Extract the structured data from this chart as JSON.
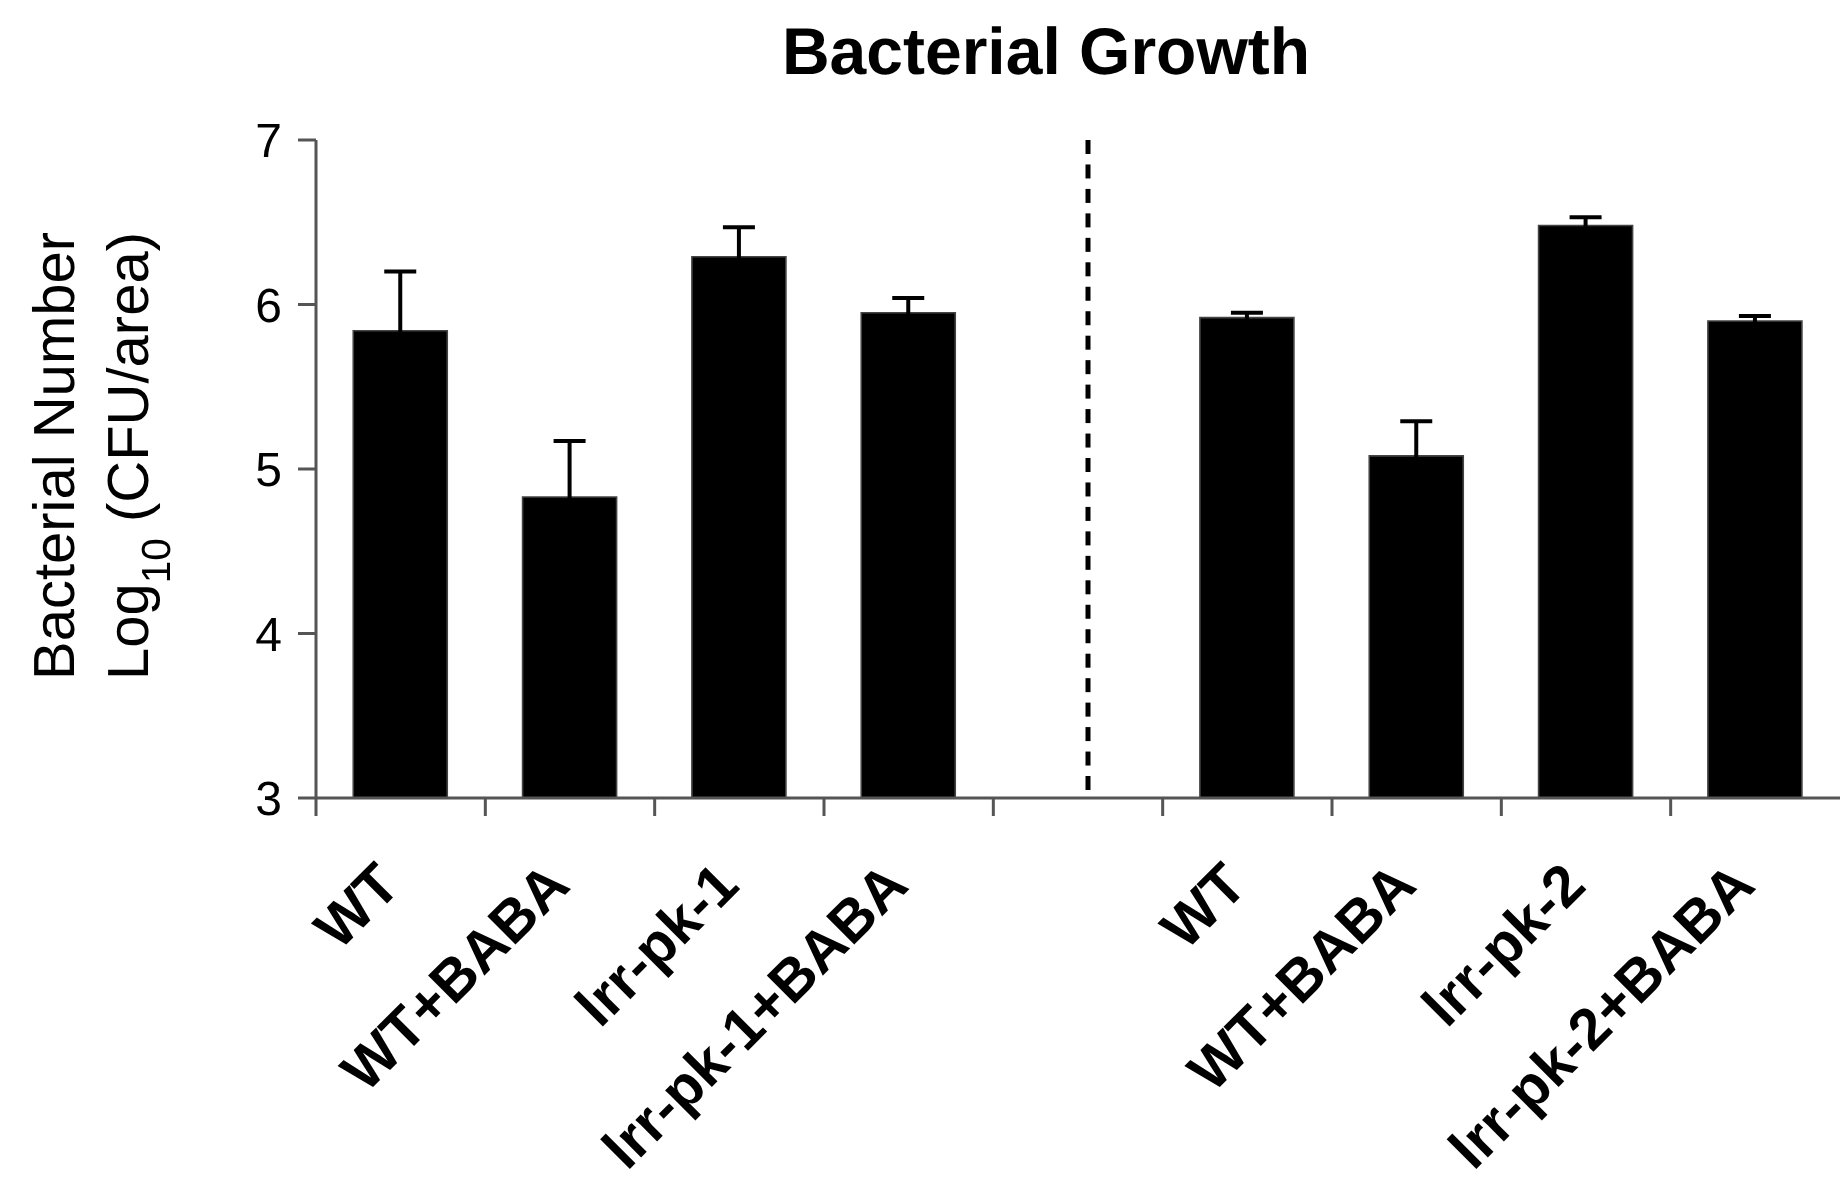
{
  "chart_data": {
    "type": "bar",
    "title": "Bacterial Growth",
    "ylabel": "Bacterial Number\nLog$_{10}$ (CFU/area)",
    "categories": [
      "WT",
      "WT+BABA",
      "lrr-pk-1",
      "lrr-pk-1+BABA",
      null,
      "WT",
      "WT+BABA",
      "lrr-pk-2",
      "lrr-pk-2+BABA"
    ],
    "values": [
      5.84,
      4.83,
      6.29,
      5.95,
      null,
      5.92,
      5.08,
      6.48,
      5.9
    ],
    "errors": [
      0.36,
      0.34,
      0.18,
      0.09,
      null,
      0.03,
      0.21,
      0.05,
      0.03
    ],
    "color": "#000000",
    "ylim": [
      3,
      7
    ],
    "yticks": [
      3,
      4,
      5,
      6,
      7
    ],
    "grid": false,
    "legend": false
  }
}
